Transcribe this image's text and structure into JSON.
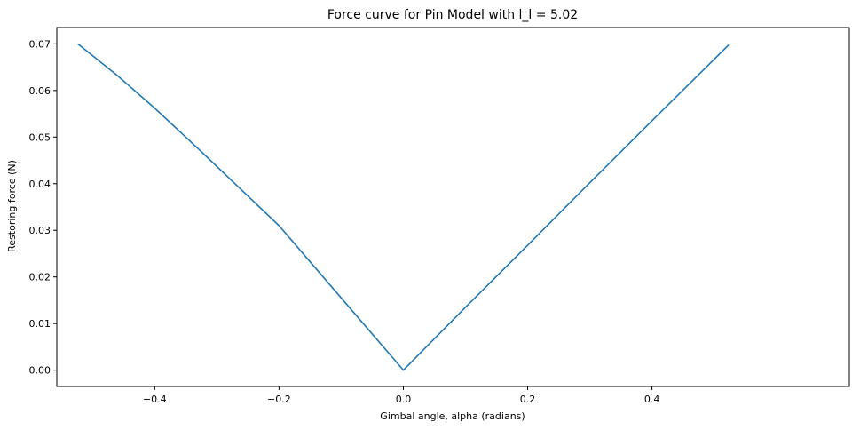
{
  "chart_data": {
    "type": "line",
    "title": "Force curve for Pin Model with l_l = 5.02",
    "xlabel": "Gimbal angle, alpha (radians)",
    "ylabel": "Restoring force (N)",
    "xlim": [
      -0.5575,
      0.7175
    ],
    "ylim": [
      -0.0035,
      0.0735
    ],
    "xticks": [
      -0.4,
      -0.2,
      0.0,
      0.2,
      0.4
    ],
    "xtick_labels": [
      "−0.4",
      "−0.2",
      "0.0",
      "0.2",
      "0.4"
    ],
    "yticks": [
      0.0,
      0.01,
      0.02,
      0.03,
      0.04,
      0.05,
      0.06,
      0.07
    ],
    "ytick_labels": [
      "0.00",
      "0.01",
      "0.02",
      "0.03",
      "0.04",
      "0.05",
      "0.06",
      "0.07"
    ],
    "grid": false,
    "series": [
      {
        "name": "force",
        "color": "#1f77b4",
        "x": [
          -0.5236,
          -0.46,
          -0.4,
          -0.33,
          -0.2,
          -0.1,
          0.0,
          0.1,
          0.2,
          0.3,
          0.4,
          0.5236
        ],
        "y": [
          0.07,
          0.0632,
          0.0562,
          0.0475,
          0.031,
          0.0155,
          0.0,
          0.0135,
          0.0268,
          0.0402,
          0.0535,
          0.0698
        ]
      }
    ]
  }
}
